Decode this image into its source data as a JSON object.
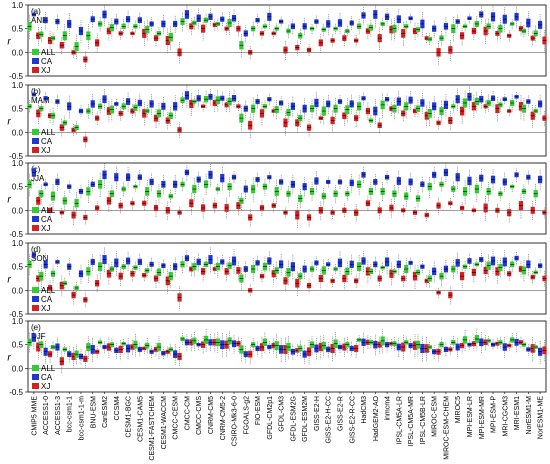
{
  "chart_data": {
    "type": "box",
    "ylabel": "r",
    "ylim": [
      -0.5,
      1.0
    ],
    "yticks": [
      "-0.5",
      "0.0",
      "0.5",
      "1.0"
    ],
    "series": [
      {
        "name": "ALL",
        "color": "#33cc33"
      },
      {
        "name": "CA",
        "color": "#1f36d6"
      },
      {
        "name": "XJ",
        "color": "#d61f1f"
      }
    ],
    "models": [
      "CMIP5 MME",
      "ACCESS1-0",
      "ACCESS1-3",
      "bcc-csm1-1",
      "bcc-csm1-1-m",
      "BNU-ESM",
      "CanESM2",
      "CCSM4",
      "CESM1-BGC",
      "CESM1-CAM5",
      "CESM1-FASTCHEM",
      "CESM1-WACCM",
      "CMCC-CESM",
      "CMCC-CM",
      "CMCC-CMS",
      "CNRM-CM5",
      "CNRM-CM5-2",
      "CSIRO-Mk3-6-0",
      "FGOALS-g2",
      "FIO-ESM",
      "GFDL-CM2p1",
      "GFDL-CM3",
      "GFDL-ESM2G",
      "GFDL-ESM2M",
      "GISS-E2-H",
      "GISS-E2-H-CC",
      "GISS-E2-R",
      "GISS-E2-R-CC",
      "HadCM3",
      "HadGEM2-AO",
      "inmcm4",
      "IPSL-CM5A-LR",
      "IPSL-CM5A-MR",
      "IPSL-CM5B-LR",
      "MIROC-ESM",
      "MIROC-ESM-CHEM",
      "MIROC5",
      "MPI-ESM-LR",
      "MPI-ESM-MR",
      "MPI-ESM-P",
      "MRI-CGCM3",
      "MRI-ESM1",
      "NorESM1-M",
      "NorESM1-ME"
    ],
    "panels": [
      {
        "label": "(a)",
        "season": "ANN",
        "ALL": [
          0.55,
          0.38,
          0.3,
          0.35,
          0.12,
          0.35,
          0.6,
          0.52,
          0.55,
          0.55,
          0.48,
          0.4,
          0.32,
          0.65,
          0.62,
          0.68,
          0.6,
          0.62,
          0.15,
          0.5,
          0.55,
          0.5,
          0.45,
          0.35,
          0.5,
          0.48,
          0.5,
          0.45,
          0.55,
          0.52,
          0.6,
          0.5,
          0.55,
          0.48,
          0.28,
          0.3,
          0.5,
          0.55,
          0.6,
          0.55,
          0.5,
          0.6,
          0.45,
          0.4
        ],
        "CA": [
          0.8,
          0.68,
          0.65,
          0.6,
          0.45,
          0.7,
          0.8,
          0.65,
          0.7,
          0.68,
          0.6,
          0.6,
          0.6,
          0.8,
          0.72,
          0.75,
          0.7,
          0.72,
          0.4,
          0.68,
          0.75,
          0.65,
          0.55,
          0.55,
          0.65,
          0.6,
          0.62,
          0.62,
          0.78,
          0.8,
          0.75,
          0.7,
          0.72,
          0.6,
          0.5,
          0.55,
          0.65,
          0.72,
          0.8,
          0.75,
          0.7,
          0.75,
          0.62,
          0.58
        ],
        "XJ": [
          0.35,
          0.25,
          0.15,
          0.0,
          -0.15,
          0.2,
          0.45,
          0.4,
          0.4,
          0.4,
          0.3,
          0.25,
          0.0,
          0.55,
          0.5,
          0.58,
          0.5,
          0.5,
          0.0,
          0.4,
          0.4,
          0.05,
          0.1,
          0.05,
          0.2,
          0.25,
          0.3,
          0.25,
          0.45,
          0.3,
          0.48,
          0.4,
          0.45,
          0.3,
          0.0,
          0.05,
          0.35,
          0.45,
          0.45,
          0.4,
          0.35,
          0.5,
          0.3,
          0.25
        ]
      },
      {
        "label": "(b)",
        "season": "MAM",
        "ALL": [
          0.55,
          0.5,
          0.35,
          0.2,
          0.1,
          0.45,
          0.55,
          0.48,
          0.55,
          0.52,
          0.45,
          0.4,
          0.35,
          0.68,
          0.65,
          0.7,
          0.68,
          0.65,
          0.3,
          0.5,
          0.55,
          0.48,
          0.42,
          0.3,
          0.5,
          0.45,
          0.5,
          0.48,
          0.55,
          0.25,
          0.58,
          0.5,
          0.55,
          0.5,
          0.4,
          0.45,
          0.55,
          0.62,
          0.65,
          0.62,
          0.58,
          0.62,
          0.5,
          0.45
        ],
        "CA": [
          0.8,
          0.72,
          0.65,
          0.55,
          0.45,
          0.6,
          0.7,
          0.6,
          0.65,
          0.62,
          0.6,
          0.55,
          0.55,
          0.78,
          0.72,
          0.75,
          0.72,
          0.72,
          0.5,
          0.65,
          0.7,
          0.62,
          0.55,
          0.5,
          0.62,
          0.6,
          0.65,
          0.6,
          0.72,
          0.45,
          0.7,
          0.65,
          0.68,
          0.62,
          0.55,
          0.58,
          0.7,
          0.75,
          0.7,
          0.72,
          0.7,
          0.75,
          0.65,
          0.6
        ],
        "XJ": [
          0.4,
          0.35,
          0.1,
          0.05,
          -0.15,
          0.3,
          0.45,
          0.4,
          0.45,
          0.4,
          0.3,
          0.25,
          0.05,
          0.6,
          0.55,
          0.62,
          0.58,
          0.55,
          0.15,
          0.4,
          0.45,
          0.2,
          0.2,
          0.1,
          0.3,
          0.25,
          0.35,
          0.3,
          0.45,
          0.15,
          0.5,
          0.4,
          0.45,
          0.35,
          0.2,
          0.25,
          0.45,
          0.55,
          0.55,
          0.5,
          0.45,
          0.55,
          0.35,
          0.3
        ]
      },
      {
        "label": "(c)",
        "season": "JJA",
        "ALL": [
          0.55,
          0.35,
          0.3,
          0.2,
          0.15,
          0.4,
          0.55,
          0.35,
          0.45,
          0.5,
          0.4,
          0.35,
          0.3,
          0.55,
          0.45,
          0.55,
          0.45,
          0.5,
          0.2,
          0.45,
          0.5,
          0.4,
          0.35,
          0.25,
          0.4,
          0.3,
          0.35,
          0.35,
          0.55,
          0.4,
          0.4,
          0.35,
          0.3,
          0.25,
          0.5,
          0.55,
          0.45,
          0.4,
          0.45,
          0.4,
          0.35,
          0.5,
          0.4,
          0.35
        ],
        "CA": [
          0.8,
          0.55,
          0.6,
          0.5,
          0.4,
          0.55,
          0.75,
          0.7,
          0.7,
          0.7,
          0.6,
          0.55,
          0.55,
          0.8,
          0.65,
          0.75,
          0.68,
          0.7,
          0.45,
          0.65,
          0.7,
          0.6,
          0.55,
          0.5,
          0.62,
          0.6,
          0.6,
          0.58,
          0.75,
          0.6,
          0.7,
          0.62,
          0.6,
          0.55,
          0.75,
          0.8,
          0.7,
          0.62,
          0.68,
          0.65,
          0.6,
          0.75,
          0.7,
          0.65
        ],
        "XJ": [
          0.2,
          0.0,
          -0.05,
          -0.1,
          -0.15,
          0.05,
          0.2,
          0.1,
          0.15,
          0.15,
          0.05,
          0.0,
          -0.05,
          0.15,
          0.05,
          0.1,
          0.05,
          0.1,
          -0.15,
          0.05,
          0.1,
          -0.05,
          -0.1,
          -0.15,
          0.0,
          -0.05,
          0.0,
          -0.05,
          0.15,
          0.0,
          0.05,
          0.0,
          -0.05,
          -0.1,
          0.1,
          0.15,
          0.05,
          0.0,
          0.05,
          0.0,
          -0.05,
          0.1,
          0.0,
          -0.05
        ]
      },
      {
        "label": "(d)",
        "season": "SON",
        "ALL": [
          0.55,
          0.3,
          0.35,
          0.15,
          0.05,
          0.4,
          0.5,
          0.45,
          0.5,
          0.48,
          0.42,
          0.38,
          0.3,
          0.55,
          0.5,
          0.55,
          0.5,
          0.52,
          0.25,
          0.45,
          0.5,
          0.42,
          0.38,
          0.3,
          0.45,
          0.42,
          0.45,
          0.4,
          0.5,
          0.4,
          0.48,
          0.4,
          0.45,
          0.38,
          0.25,
          0.3,
          0.45,
          0.5,
          0.55,
          0.52,
          0.48,
          0.55,
          0.42,
          0.38
        ],
        "CA": [
          0.75,
          0.55,
          0.6,
          0.5,
          0.35,
          0.6,
          0.65,
          0.58,
          0.62,
          0.6,
          0.55,
          0.52,
          0.5,
          0.68,
          0.6,
          0.65,
          0.6,
          0.62,
          0.45,
          0.58,
          0.62,
          0.55,
          0.5,
          0.45,
          0.58,
          0.55,
          0.58,
          0.55,
          0.62,
          0.55,
          0.6,
          0.55,
          0.58,
          0.5,
          0.4,
          0.45,
          0.58,
          0.62,
          0.65,
          0.62,
          0.6,
          0.68,
          0.55,
          0.52
        ],
        "XJ": [
          0.25,
          0.05,
          0.1,
          -0.1,
          -0.2,
          0.15,
          0.35,
          0.3,
          0.35,
          0.32,
          0.25,
          0.2,
          -0.15,
          0.45,
          0.4,
          0.45,
          0.4,
          0.42,
          0.0,
          0.3,
          0.35,
          0.2,
          0.15,
          0.1,
          0.25,
          0.2,
          0.25,
          0.2,
          0.4,
          0.25,
          0.35,
          0.25,
          0.3,
          0.2,
          -0.05,
          -0.1,
          0.3,
          0.38,
          0.42,
          0.4,
          0.35,
          0.45,
          0.28,
          0.25
        ]
      },
      {
        "label": "(e)",
        "season": "DJF",
        "ALL": [
          0.55,
          0.5,
          0.45,
          0.4,
          0.3,
          0.45,
          0.55,
          0.5,
          0.52,
          0.5,
          0.48,
          0.45,
          0.4,
          0.62,
          0.58,
          0.6,
          0.55,
          0.58,
          0.4,
          0.5,
          0.55,
          0.48,
          0.45,
          0.42,
          0.5,
          0.48,
          0.52,
          0.5,
          0.6,
          0.55,
          0.58,
          0.52,
          0.55,
          0.5,
          0.45,
          0.5,
          0.55,
          0.6,
          0.62,
          0.58,
          0.55,
          0.6,
          0.5,
          0.45
        ],
        "CA": [
          0.65,
          0.35,
          0.45,
          0.3,
          0.25,
          0.4,
          0.45,
          0.38,
          0.42,
          0.4,
          0.35,
          0.32,
          0.3,
          0.55,
          0.5,
          0.55,
          0.5,
          0.52,
          0.3,
          0.42,
          0.45,
          0.4,
          0.35,
          0.3,
          0.42,
          0.4,
          0.45,
          0.42,
          0.55,
          0.5,
          0.5,
          0.45,
          0.48,
          0.42,
          0.35,
          0.4,
          0.45,
          0.5,
          0.55,
          0.5,
          0.45,
          0.55,
          0.4,
          0.35
        ],
        "XJ": [
          0.45,
          0.3,
          0.15,
          0.25,
          0.2,
          0.35,
          0.45,
          0.4,
          0.45,
          0.42,
          0.4,
          0.35,
          0.25,
          0.55,
          0.5,
          0.55,
          0.5,
          0.52,
          0.3,
          0.45,
          0.48,
          0.4,
          0.38,
          0.35,
          0.45,
          0.42,
          0.45,
          0.42,
          0.55,
          0.5,
          0.52,
          0.45,
          0.48,
          0.42,
          0.35,
          0.4,
          0.48,
          0.52,
          0.55,
          0.52,
          0.48,
          0.55,
          0.42,
          0.38
        ]
      }
    ]
  }
}
